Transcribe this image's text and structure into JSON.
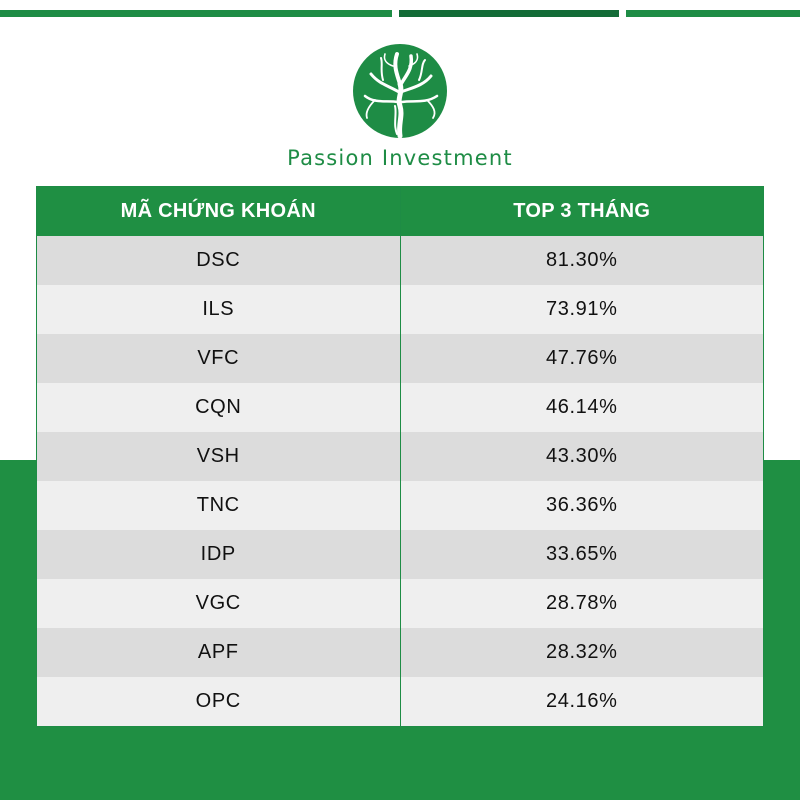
{
  "brand": {
    "name": "Passion Investment",
    "accent_color": "#1e8c45",
    "logo_icon": "tree-logo-icon"
  },
  "table": {
    "headers": [
      "MÃ CHỨNG KHOÁN",
      "TOP 3 THÁNG"
    ],
    "rows": [
      {
        "code": "DSC",
        "value": "81.30%"
      },
      {
        "code": "ILS",
        "value": "73.91%"
      },
      {
        "code": "VFC",
        "value": "47.76%"
      },
      {
        "code": "CQN",
        "value": "46.14%"
      },
      {
        "code": "VSH",
        "value": "43.30%"
      },
      {
        "code": "TNC",
        "value": "36.36%"
      },
      {
        "code": "IDP",
        "value": "33.65%"
      },
      {
        "code": "VGC",
        "value": "28.78%"
      },
      {
        "code": "APF",
        "value": "28.32%"
      },
      {
        "code": "OPC",
        "value": "24.16%"
      }
    ]
  }
}
